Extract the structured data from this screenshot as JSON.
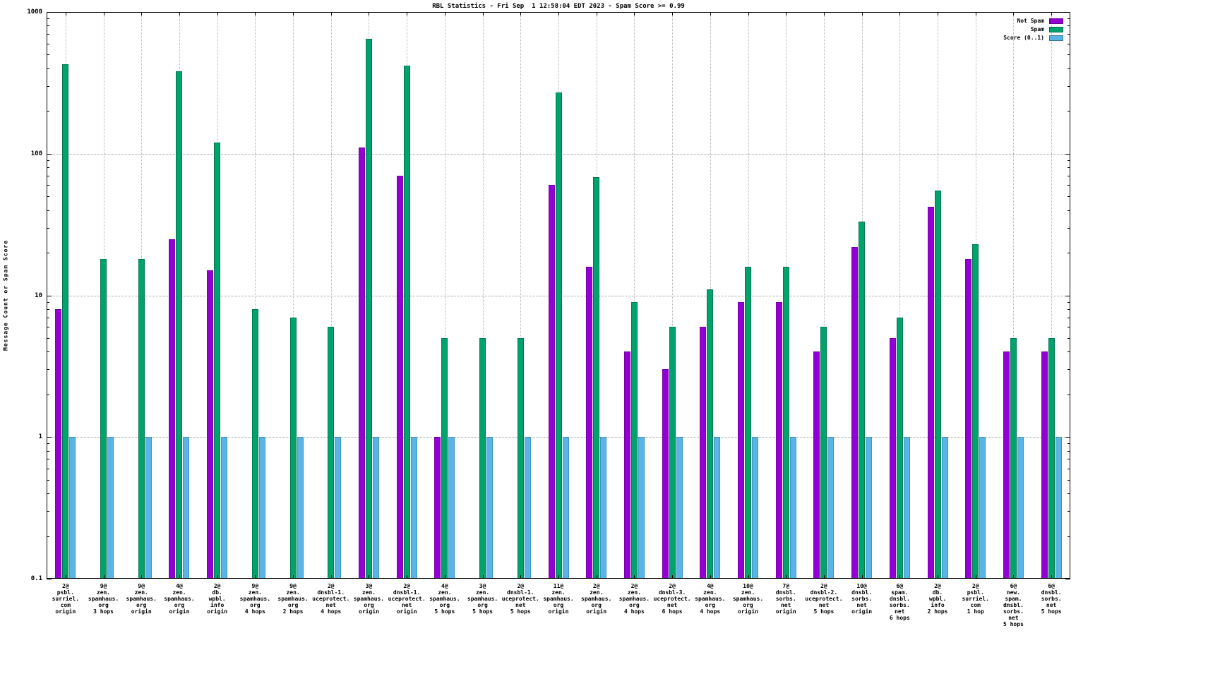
{
  "title": "RBL Statistics - Fri Sep  1 12:58:04 EDT 2023 - Spam Score >= 0.99",
  "ylabel": "Message Count or Spam Score",
  "legend": [
    {
      "label": "Not Spam",
      "color": "#9400d3",
      "border": "#7a00ad"
    },
    {
      "label": "Spam",
      "color": "#00a36c",
      "border": "#00794f"
    },
    {
      "label": "Score (0..1)",
      "color": "#5ab4e5",
      "border": "#3f93c4"
    }
  ],
  "chart_data": {
    "type": "bar",
    "y_scale": "log",
    "ylim": [
      0.1,
      1000
    ],
    "grid": true,
    "legend_position": "top-right",
    "y_ticks": [
      [
        1000,
        "1000"
      ],
      [
        100,
        "100"
      ],
      [
        10,
        "10"
      ],
      [
        1,
        "1"
      ],
      [
        0.1,
        "0.1"
      ]
    ],
    "y_gridlines": [
      1,
      10,
      100
    ],
    "categories": [
      [
        "2@",
        "psbl.",
        "surriel.",
        "com",
        "origin"
      ],
      [
        "9@",
        "zen.",
        "spamhaus.",
        "org",
        "3 hops"
      ],
      [
        "9@",
        "zen.",
        "spamhaus.",
        "org",
        "origin"
      ],
      [
        "4@",
        "zen.",
        "spamhaus.",
        "org",
        "origin"
      ],
      [
        "2@",
        "db.",
        "wpbl.",
        "info",
        "origin"
      ],
      [
        "9@",
        "zen.",
        "spamhaus.",
        "org",
        "4 hops"
      ],
      [
        "9@",
        "zen.",
        "spamhaus.",
        "org",
        "2 hops"
      ],
      [
        "2@",
        "dnsbl-1.",
        "uceprotect.",
        "net",
        "4 hops"
      ],
      [
        "3@",
        "zen.",
        "spamhaus.",
        "org",
        "origin"
      ],
      [
        "2@",
        "dnsbl-1.",
        "uceprotect.",
        "net",
        "origin"
      ],
      [
        "4@",
        "zen.",
        "spamhaus.",
        "org",
        "5 hops"
      ],
      [
        "3@",
        "zen.",
        "spamhaus.",
        "org",
        "5 hops"
      ],
      [
        "2@",
        "dnsbl-1.",
        "uceprotect.",
        "net",
        "5 hops"
      ],
      [
        "11@",
        "zen.",
        "spamhaus.",
        "org",
        "origin"
      ],
      [
        "2@",
        "zen.",
        "spamhaus.",
        "org",
        "origin"
      ],
      [
        "2@",
        "zen.",
        "spamhaus.",
        "org",
        "4 hops"
      ],
      [
        "2@",
        "dnsbl-3.",
        "uceprotect.",
        "net",
        "6 hops"
      ],
      [
        "4@",
        "zen.",
        "spamhaus.",
        "org",
        "4 hops"
      ],
      [
        "10@",
        "zen.",
        "spamhaus.",
        "org",
        "origin"
      ],
      [
        "7@",
        "dnsbl.",
        "sorbs.",
        "net",
        "origin"
      ],
      [
        "2@",
        "dnsbl-2.",
        "uceprotect.",
        "net",
        "5 hops"
      ],
      [
        "10@",
        "dnsbl.",
        "sorbs.",
        "net",
        "origin"
      ],
      [
        "6@",
        "spam.",
        "dnsbl.",
        "sorbs.",
        "net",
        "6 hops"
      ],
      [
        "2@",
        "db.",
        "wpbl.",
        "info",
        "2 hops"
      ],
      [
        "2@",
        "psbl.",
        "surriel.",
        "com",
        "1 hop"
      ],
      [
        "6@",
        "new.",
        "spam.",
        "dnsbl.",
        "sorbs.",
        "net",
        "5 hops"
      ],
      [
        "6@",
        "dnsbl.",
        "sorbs.",
        "net",
        "5 hops"
      ]
    ],
    "series": [
      {
        "name": "Not Spam",
        "color": "#9400d3",
        "border": "#7a00ad",
        "values": [
          8,
          null,
          null,
          25,
          15,
          null,
          null,
          null,
          110,
          70,
          1,
          null,
          null,
          60,
          16,
          4,
          3,
          6,
          9,
          9,
          4,
          22,
          5,
          42,
          18,
          4,
          4
        ]
      },
      {
        "name": "Spam",
        "color": "#00a36c",
        "border": "#00794f",
        "values": [
          430,
          18,
          18,
          380,
          120,
          8,
          7,
          6,
          650,
          420,
          5,
          5,
          5,
          270,
          68,
          9,
          6,
          11,
          16,
          16,
          6,
          33,
          7,
          55,
          23,
          5,
          5
        ]
      },
      {
        "name": "Score (0..1)",
        "color": "#5ab4e5",
        "border": "#3f93c4",
        "values": [
          1,
          1,
          1,
          1,
          1,
          1,
          1,
          1,
          1,
          1,
          1,
          1,
          1,
          1,
          1,
          1,
          1,
          1,
          1,
          1,
          1,
          1,
          1,
          1,
          1,
          1,
          1
        ]
      }
    ]
  }
}
